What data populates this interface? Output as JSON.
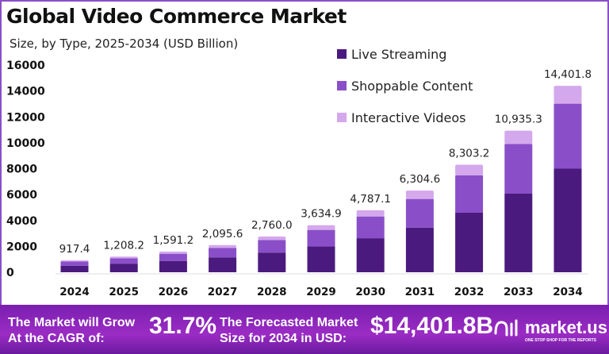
{
  "chart_data": {
    "type": "bar",
    "stacked": true,
    "title": "Global Video Commerce Market",
    "subtitle": "Size, by Type, 2025-2034 (USD Billion)",
    "categories": [
      "2024",
      "2025",
      "2026",
      "2027",
      "2028",
      "2029",
      "2030",
      "2031",
      "2032",
      "2033",
      "2034"
    ],
    "totals": [
      "917.4",
      "1,208.2",
      "1,591.2",
      "2,095.6",
      "2,760.0",
      "3,634.9",
      "4,787.1",
      "6,304.6",
      "8,303.2",
      "10,935.3",
      "14,401.8"
    ],
    "series": [
      {
        "name": "Live Streaming",
        "color": "#4b1a7e",
        "values": [
          505,
          665,
          875,
          1150,
          1520,
          2000,
          2630,
          3450,
          4600,
          6070,
          8000
        ]
      },
      {
        "name": "Shoppable Content",
        "color": "#8a4fc8",
        "values": [
          320,
          420,
          555,
          735,
          965,
          1270,
          1680,
          2210,
          2880,
          3830,
          5020
        ]
      },
      {
        "name": "Interactive Videos",
        "color": "#d4a8ec",
        "values": [
          92,
          123,
          161,
          211,
          275,
          365,
          477,
          645,
          823,
          1035,
          1382
        ]
      }
    ],
    "ylim": [
      0,
      16000
    ],
    "yticks": [
      "0",
      "2000",
      "4000",
      "6000",
      "8000",
      "10000",
      "12000",
      "14000",
      "16000"
    ],
    "grid": false,
    "legend_position": "top-right"
  },
  "footer": {
    "cagr_label": [
      "The Market will Grow",
      "At the CAGR of:"
    ],
    "cagr_value": "31.7%",
    "forecast_label": [
      "The Forecasted Market",
      "Size for 2034 in USD:"
    ],
    "forecast_value": "$14,401.8B",
    "brand": "market.us",
    "brand_tagline": "ONE STOP SHOP FOR THE REPORTS"
  }
}
